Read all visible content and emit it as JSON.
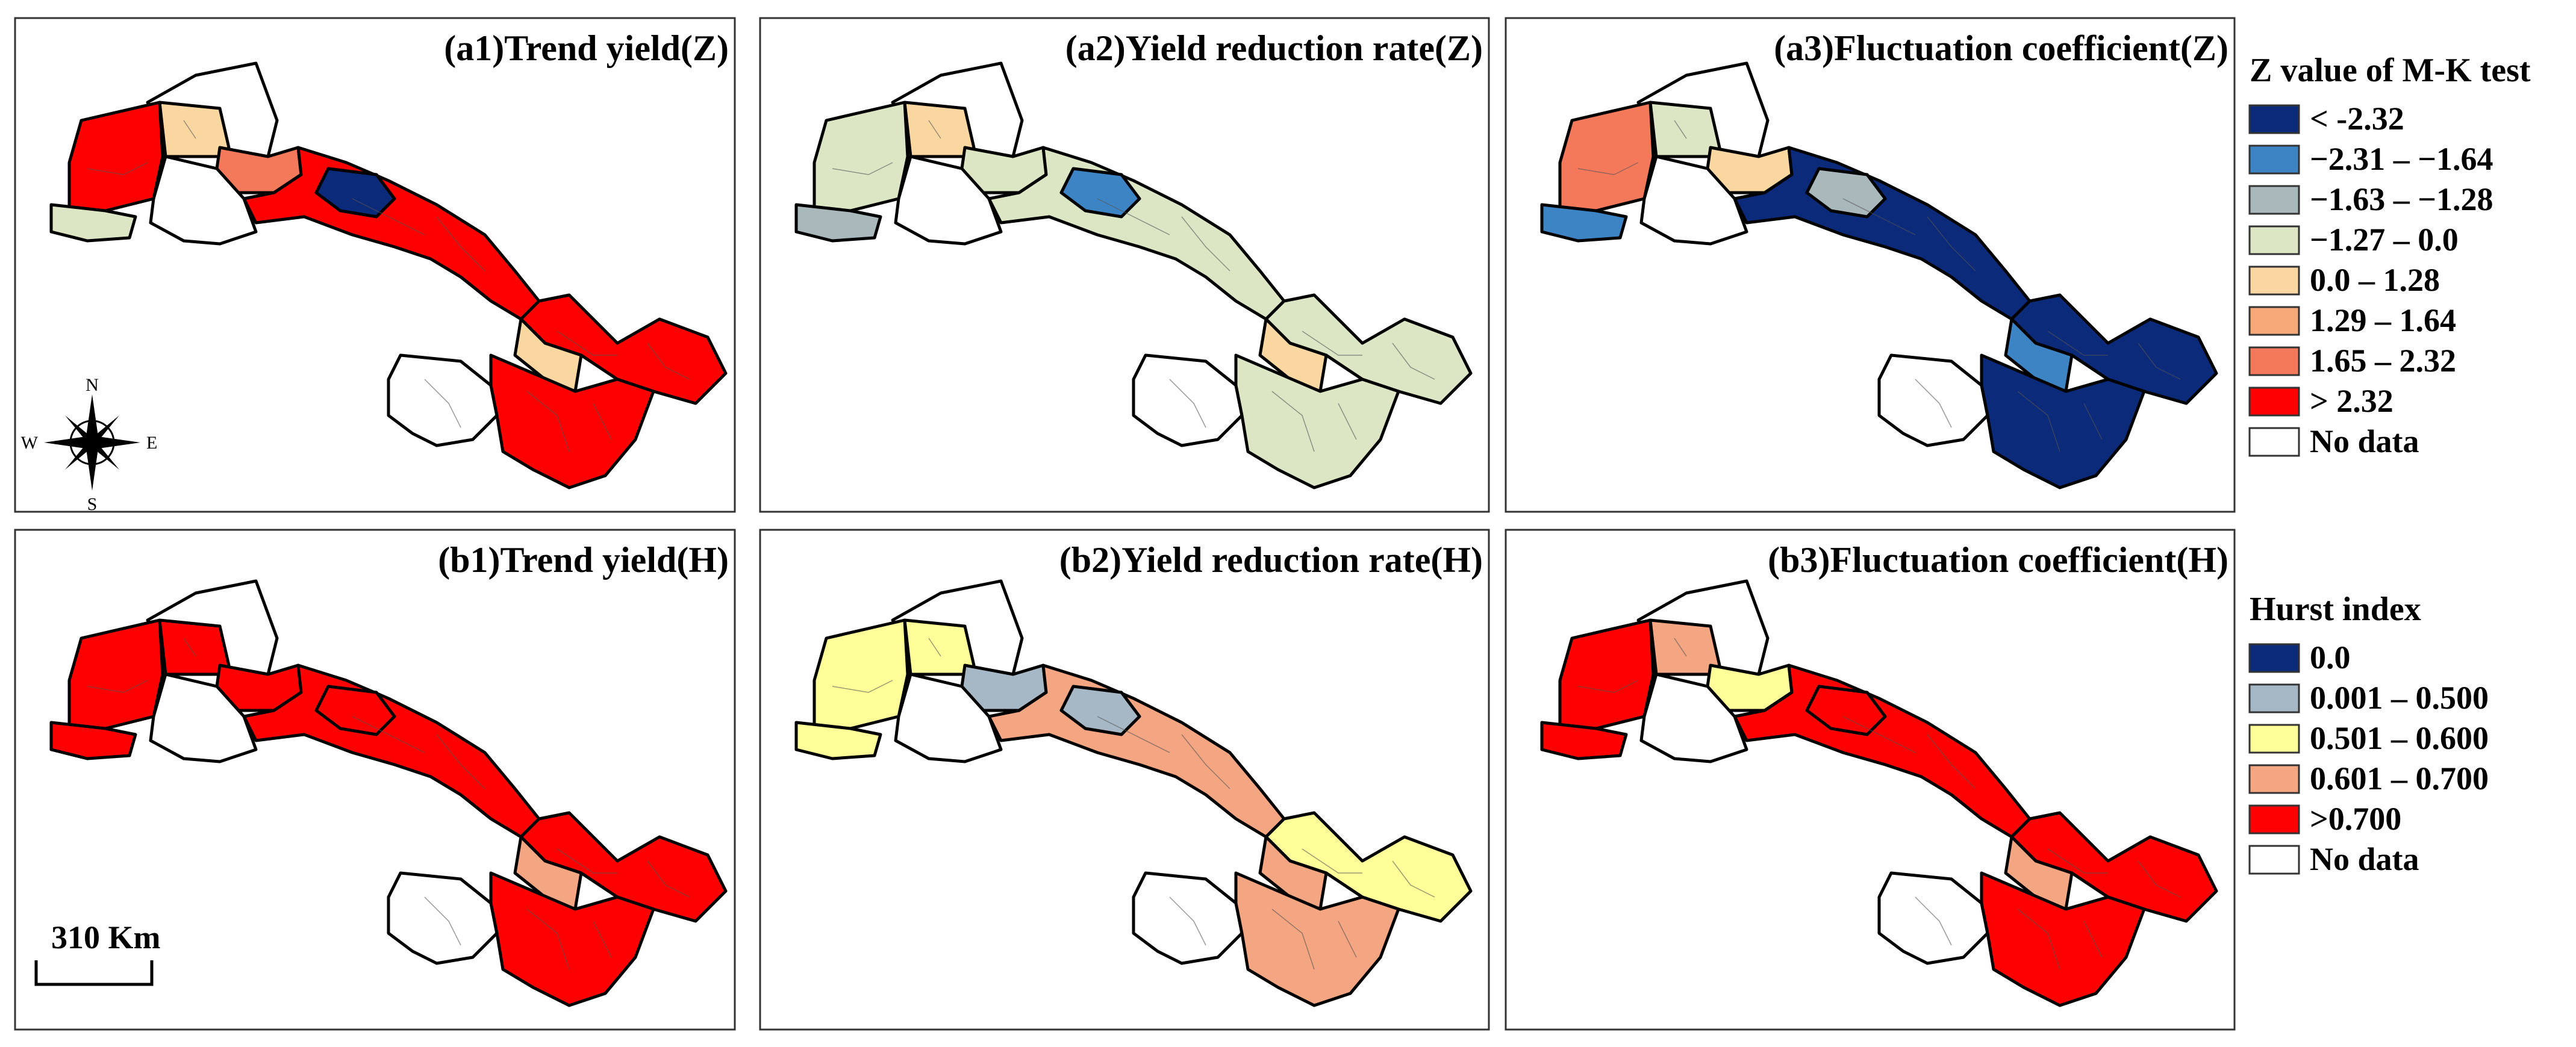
{
  "panels": [
    {
      "id": "a1",
      "title": "(a1)Trend yield(Z)",
      "fills": {
        "north": "#ffffff",
        "west": "#ff0000",
        "west_mid": "#fad7a0",
        "center_w": "#f4785a",
        "bottom_w": "#ffffff",
        "southwest": "#dde6c4",
        "corridor": "#ff0000",
        "corridor_accent": "#0c2a7a",
        "east": "#ff0000",
        "east_accent": "#fad7a0",
        "south_white": "#ffffff",
        "southeast": "#ff0000"
      }
    },
    {
      "id": "a2",
      "title": "(a2)Yield reduction rate(Z)",
      "fills": {
        "north": "#ffffff",
        "west": "#dde6c4",
        "west_mid": "#fad7a0",
        "center_w": "#dde6c4",
        "bottom_w": "#ffffff",
        "southwest": "#a9b8bb",
        "corridor": "#dde6c4",
        "corridor_accent": "#3d84c4",
        "east": "#dde6c4",
        "east_accent": "#fad7a0",
        "south_white": "#ffffff",
        "southeast": "#dde6c4"
      }
    },
    {
      "id": "a3",
      "title": "(a3)Fluctuation coefficient(Z)",
      "fills": {
        "north": "#ffffff",
        "west": "#f4785a",
        "west_mid": "#dde6c4",
        "center_w": "#fad7a0",
        "bottom_w": "#ffffff",
        "southwest": "#3d84c4",
        "corridor": "#0c2a7a",
        "corridor_accent": "#a9b8bb",
        "east": "#0c2a7a",
        "east_accent": "#3d84c4",
        "south_white": "#ffffff",
        "southeast": "#0c2a7a"
      }
    },
    {
      "id": "b1",
      "title": "(b1)Trend yield(H)",
      "fills": {
        "north": "#ffffff",
        "west": "#ff0000",
        "west_mid": "#ff0000",
        "center_w": "#ff0000",
        "bottom_w": "#ffffff",
        "southwest": "#ff0000",
        "corridor": "#ff0000",
        "corridor_accent": "#ff0000",
        "east": "#ff0000",
        "east_accent": "#f4a582",
        "south_white": "#ffffff",
        "southeast": "#ff0000"
      }
    },
    {
      "id": "b2",
      "title": "(b2)Yield reduction rate(H)",
      "fills": {
        "north": "#ffffff",
        "west": "#ffff9a",
        "west_mid": "#ffff9a",
        "center_w": "#a6b8c5",
        "bottom_w": "#ffffff",
        "southwest": "#ffff9a",
        "corridor": "#f4a582",
        "corridor_accent": "#a6b8c5",
        "east": "#ffff9a",
        "east_accent": "#f4a582",
        "south_white": "#ffffff",
        "southeast": "#f4a582"
      }
    },
    {
      "id": "b3",
      "title": "(b3)Fluctuation coefficient(H)",
      "fills": {
        "north": "#ffffff",
        "west": "#ff0000",
        "west_mid": "#f4a582",
        "center_w": "#ffff9a",
        "bottom_w": "#ffffff",
        "southwest": "#ff0000",
        "corridor": "#ff0000",
        "corridor_accent": "#ff0000",
        "east": "#ff0000",
        "east_accent": "#f4a582",
        "south_white": "#ffffff",
        "southeast": "#ff0000"
      }
    }
  ],
  "legend_z": {
    "title": "Z value of M-K test",
    "items": [
      {
        "label": "< -2.32",
        "color": "#0c2a7a"
      },
      {
        "label": "−2.31 – −1.64",
        "color": "#3d84c4"
      },
      {
        "label": "−1.63 – −1.28",
        "color": "#a9b8bb"
      },
      {
        "label": "−1.27 – 0.0",
        "color": "#dde6c4"
      },
      {
        "label": "0.0 – 1.28",
        "color": "#fad7a0"
      },
      {
        "label": "1.29 – 1.64",
        "color": "#f7a878"
      },
      {
        "label": "1.65 – 2.32",
        "color": "#f4785a"
      },
      {
        "label": "> 2.32",
        "color": "#ff0000"
      },
      {
        "label": "No data",
        "color": "#ffffff"
      }
    ]
  },
  "legend_h": {
    "title": "Hurst index",
    "items": [
      {
        "label": "0.0",
        "color": "#0c2a7a"
      },
      {
        "label": "0.001 – 0.500",
        "color": "#a6b8c5"
      },
      {
        "label": "0.501 – 0.600",
        "color": "#ffff9a"
      },
      {
        "label": "0.601 – 0.700",
        "color": "#f4a582"
      },
      {
        "label": ">0.700",
        "color": "#ff0000"
      },
      {
        "label": "No data",
        "color": "#ffffff"
      }
    ]
  },
  "compass": {
    "n": "N",
    "s": "S",
    "e": "E",
    "w": "W"
  },
  "scale_bar": {
    "label": "310 Km"
  }
}
